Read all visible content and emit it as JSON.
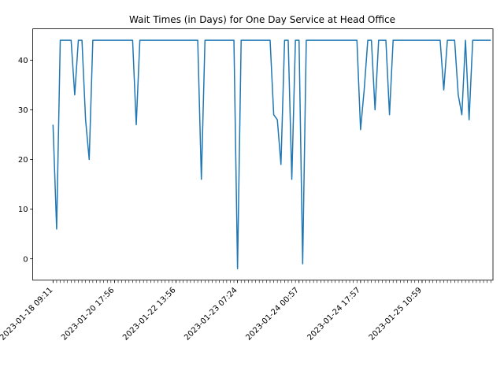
{
  "chart_data": {
    "type": "line",
    "title": "Wait Times (in Days) for One Day Service at Head Office",
    "xlabel": "",
    "ylabel": "",
    "line_color": "#1f77b4",
    "grid": false,
    "legend": "none",
    "ylim": [
      -4.3,
      46.3
    ],
    "xlim": [
      -5.6,
      121.6
    ],
    "yticks": [
      0,
      10,
      20,
      30,
      40
    ],
    "xtick_index_step": 17,
    "xtick_labels": [
      "2023-01-18 09:11",
      "2023-01-20 17:56",
      "2023-01-22 13:56",
      "2023-01-23 07:24",
      "2023-01-24 00:57",
      "2023-01-24 17:57",
      "2023-01-25 10:59"
    ],
    "minor_tick_count": 122,
    "series": [
      {
        "values": [
          27,
          6,
          44,
          44,
          44,
          44,
          33,
          44,
          44,
          28,
          20,
          44,
          44,
          44,
          44,
          44,
          44,
          44,
          44,
          44,
          44,
          44,
          44,
          27,
          44,
          44,
          44,
          44,
          44,
          44,
          44,
          44,
          44,
          44,
          44,
          44,
          44,
          44,
          44,
          44,
          44,
          16,
          44,
          44,
          44,
          44,
          44,
          44,
          44,
          44,
          44,
          -2,
          44,
          44,
          44,
          44,
          44,
          44,
          44,
          44,
          44,
          29,
          28,
          19,
          44,
          44,
          16,
          44,
          44,
          -1,
          44,
          44,
          44,
          44,
          44,
          44,
          44,
          44,
          44,
          44,
          44,
          44,
          44,
          44,
          44,
          26,
          34,
          44,
          44,
          30,
          44,
          44,
          44,
          29,
          44,
          44,
          44,
          44,
          44,
          44,
          44,
          44,
          44,
          44,
          44,
          44,
          44,
          44,
          34,
          44,
          44,
          44,
          33,
          29,
          44,
          28,
          44,
          44,
          44,
          44,
          44,
          44
        ]
      }
    ]
  }
}
